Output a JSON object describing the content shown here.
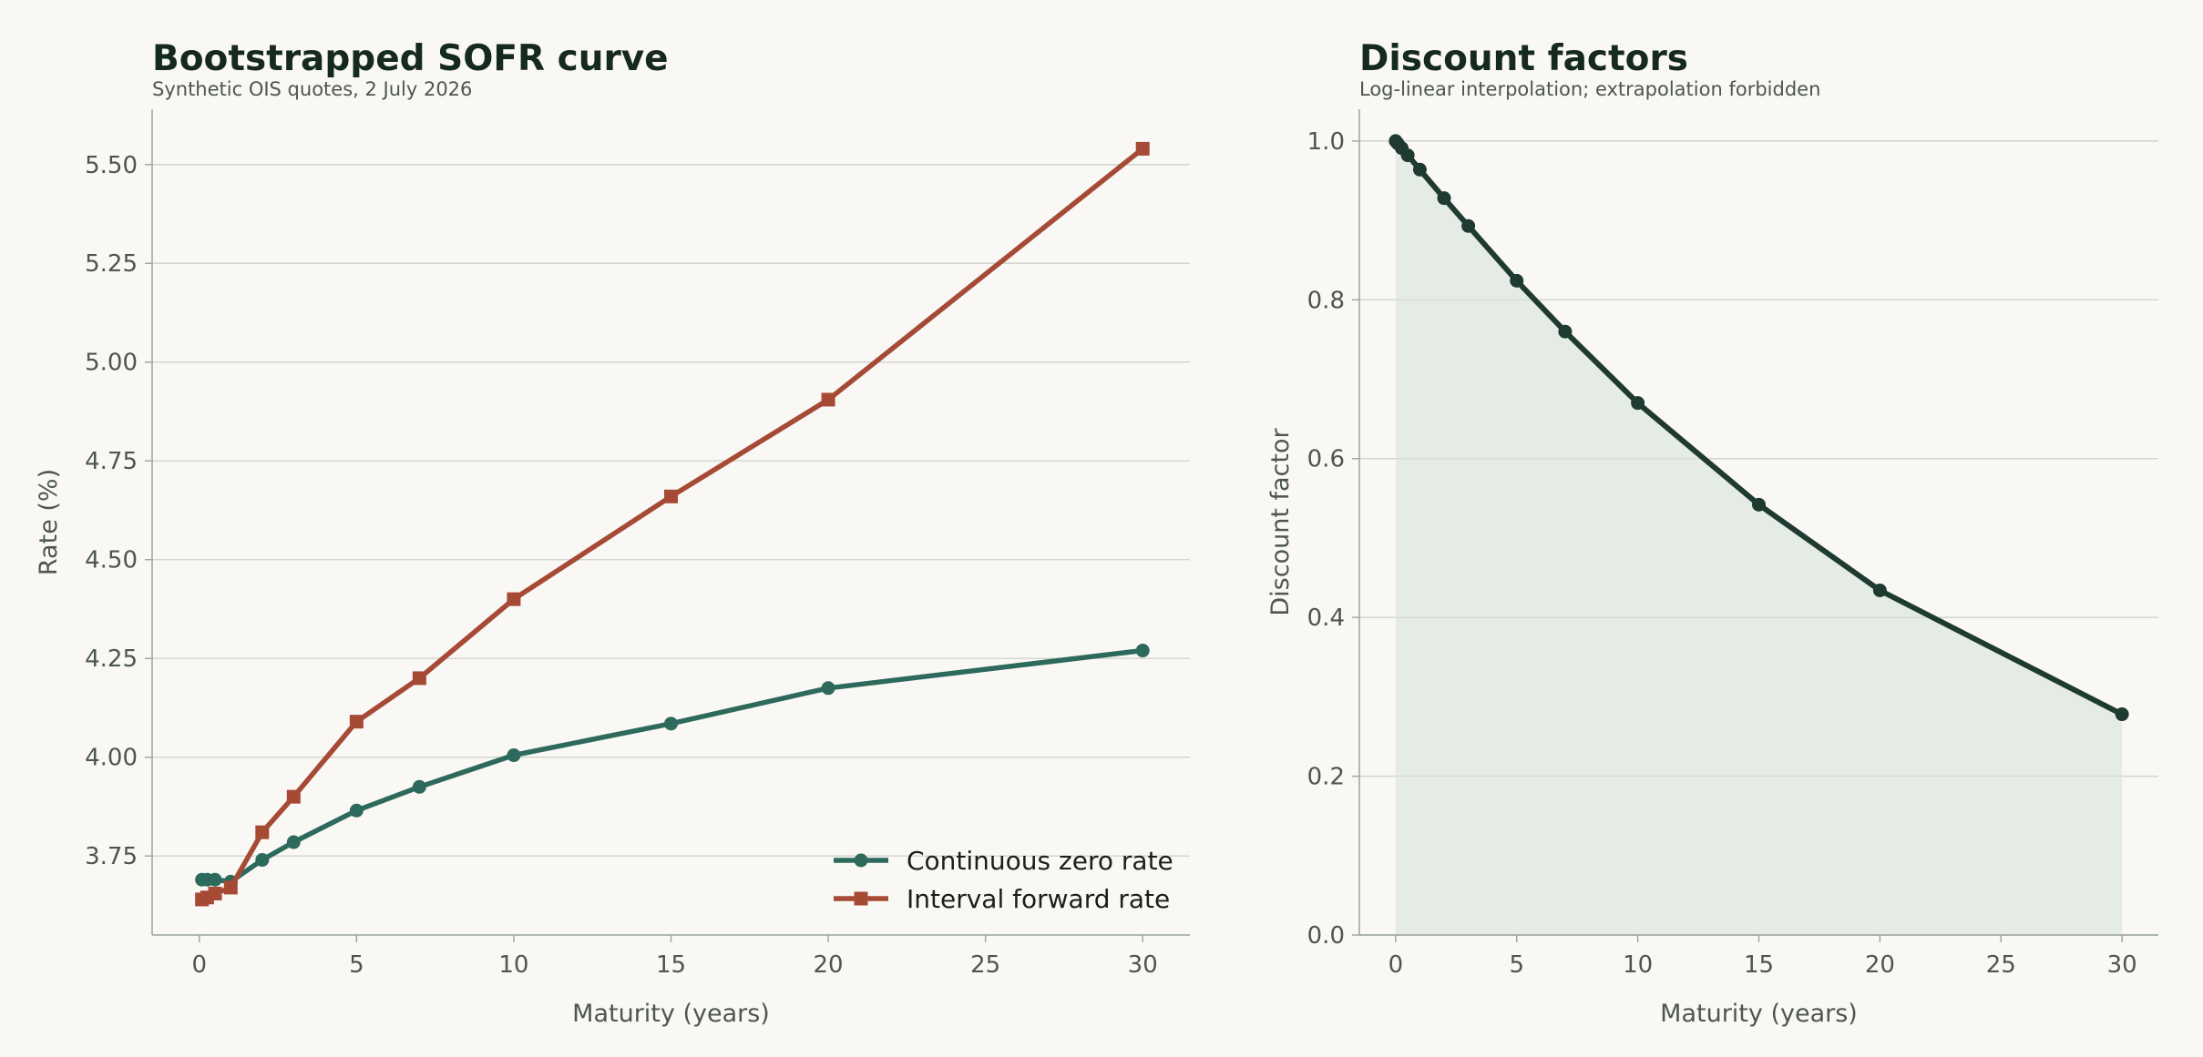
{
  "chart_data": [
    {
      "type": "line",
      "title": "Bootstrapped SOFR curve",
      "subtitle": "Synthetic OIS quotes, 2 July 2026",
      "xlabel": "Maturity (years)",
      "ylabel": "Rate (%)",
      "xlim": [
        -1.5,
        31.5
      ],
      "ylim": [
        3.55,
        5.64
      ],
      "xticks": [
        0,
        5,
        10,
        15,
        20,
        25,
        30
      ],
      "yticks": [
        3.75,
        4.0,
        4.25,
        4.5,
        4.75,
        5.0,
        5.25,
        5.5
      ],
      "ytick_decimals": 2,
      "grid": "horizontal",
      "legend": "lower-right",
      "series": [
        {
          "name": "Continuous zero rate",
          "color": "#2d6a5c",
          "marker": "circle",
          "x": [
            0.083,
            0.25,
            0.5,
            1,
            2,
            3,
            5,
            7,
            10,
            15,
            20,
            30
          ],
          "y": [
            3.69,
            3.69,
            3.69,
            3.685,
            3.74,
            3.785,
            3.865,
            3.925,
            4.005,
            4.085,
            4.175,
            4.27
          ]
        },
        {
          "name": "Interval forward rate",
          "color": "#a64a36",
          "marker": "square",
          "x": [
            0.083,
            0.25,
            0.5,
            1,
            2,
            3,
            5,
            7,
            10,
            15,
            20,
            30
          ],
          "y": [
            3.64,
            3.645,
            3.655,
            3.67,
            3.81,
            3.9,
            4.09,
            4.2,
            4.4,
            4.66,
            4.905,
            5.54
          ]
        }
      ]
    },
    {
      "type": "area",
      "title": "Discount factors",
      "subtitle": "Log-linear interpolation; extrapolation forbidden",
      "xlabel": "Maturity (years)",
      "ylabel": "Discount factor",
      "xlim": [
        -1.5,
        31.5
      ],
      "ylim": [
        0.0,
        1.04
      ],
      "xticks": [
        0,
        5,
        10,
        15,
        20,
        25,
        30
      ],
      "yticks": [
        0.0,
        0.2,
        0.4,
        0.6,
        0.8,
        1.0
      ],
      "ytick_decimals": 1,
      "grid": "horizontal",
      "series": [
        {
          "color": "#1f3a30",
          "fill": "#e2e9e3",
          "marker": "circle",
          "x": [
            0,
            0.083,
            0.25,
            0.5,
            1,
            2,
            3,
            5,
            7,
            10,
            15,
            20,
            30
          ],
          "y": [
            1.0,
            0.997,
            0.991,
            0.982,
            0.964,
            0.928,
            0.893,
            0.824,
            0.76,
            0.67,
            0.542,
            0.434,
            0.278
          ]
        }
      ]
    }
  ]
}
